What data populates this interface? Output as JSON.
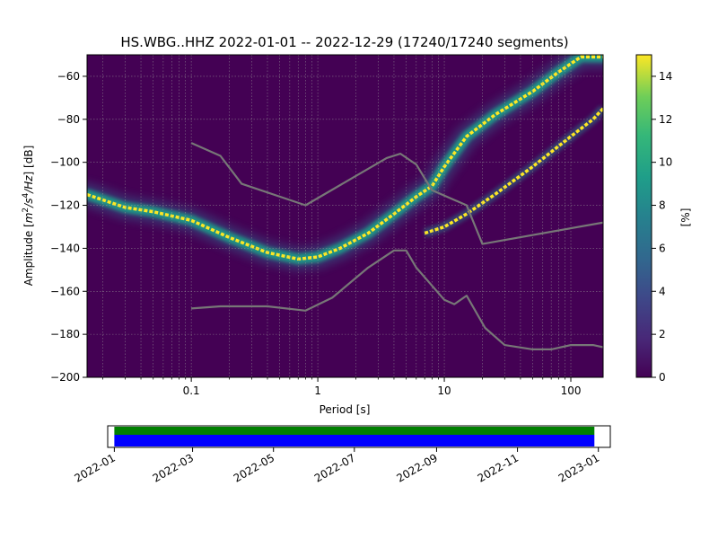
{
  "chart_data": [
    {
      "type": "heatmap",
      "title": "HS.WBG..HHZ   2022-01-01 -- 2022-12-29  (17240/17240 segments)",
      "xlabel": "Period [s]",
      "ylabel_parts": [
        "Amplitude [",
        "m",
        "2",
        "/s",
        "4",
        "/Hz",
        "] [dB]"
      ],
      "x_scale": "log",
      "xlim": [
        0.015,
        180
      ],
      "ylim": [
        -200,
        -50
      ],
      "x_ticks": [
        {
          "v": 0.1,
          "label": "0.1"
        },
        {
          "v": 1,
          "label": "1"
        },
        {
          "v": 10,
          "label": "10"
        },
        {
          "v": 100,
          "label": "100"
        }
      ],
      "y_ticks": [
        -60,
        -80,
        -100,
        -120,
        -140,
        -160,
        -180,
        -200
      ],
      "grid": true,
      "colorbar": {
        "label": "[%]",
        "range": [
          0,
          15
        ],
        "ticks": [
          0,
          2,
          4,
          6,
          8,
          10,
          12,
          14
        ],
        "colormap": "viridis"
      },
      "mode_curve": [
        [
          0.015,
          -115
        ],
        [
          0.03,
          -121
        ],
        [
          0.05,
          -123
        ],
        [
          0.1,
          -127
        ],
        [
          0.2,
          -135
        ],
        [
          0.4,
          -142
        ],
        [
          0.7,
          -145
        ],
        [
          1.0,
          -144
        ],
        [
          1.5,
          -140
        ],
        [
          2.5,
          -133
        ],
        [
          4,
          -124
        ],
        [
          6,
          -116
        ],
        [
          8,
          -111
        ],
        [
          10,
          -102
        ],
        [
          15,
          -88
        ],
        [
          25,
          -78
        ],
        [
          50,
          -67
        ],
        [
          80,
          -58
        ],
        [
          120,
          -51
        ],
        [
          180,
          -51
        ]
      ],
      "lower_curve": [
        [
          7,
          -133
        ],
        [
          10,
          -130
        ],
        [
          15,
          -124
        ],
        [
          25,
          -115
        ],
        [
          50,
          -102
        ],
        [
          100,
          -88
        ],
        [
          150,
          -80
        ],
        [
          180,
          -75
        ]
      ],
      "reference_curves": [
        {
          "points": [
            [
              0.1,
              -91
            ],
            [
              0.17,
              -97
            ],
            [
              0.25,
              -110
            ],
            [
              0.8,
              -120
            ],
            [
              3.5,
              -98
            ],
            [
              4.5,
              -96
            ],
            [
              6,
              -101
            ],
            [
              8,
              -113
            ],
            [
              15,
              -120
            ],
            [
              20,
              -138
            ],
            [
              180,
              -128
            ]
          ]
        },
        {
          "points": [
            [
              0.1,
              -168
            ],
            [
              0.17,
              -167
            ],
            [
              0.4,
              -167
            ],
            [
              0.8,
              -169
            ],
            [
              1.3,
              -163
            ],
            [
              2.5,
              -149
            ],
            [
              4,
              -141
            ],
            [
              5,
              -141
            ],
            [
              6,
              -149
            ],
            [
              10,
              -164
            ],
            [
              12,
              -166
            ],
            [
              15,
              -162
            ],
            [
              21,
              -177
            ],
            [
              30,
              -185
            ],
            [
              50,
              -187
            ],
            [
              70,
              -187
            ],
            [
              100,
              -185
            ],
            [
              150,
              -185
            ],
            [
              180,
              -186
            ]
          ]
        }
      ],
      "colors": {
        "background": "#440154",
        "reference": "#777777"
      }
    },
    {
      "type": "timeline",
      "x_ticks": [
        "2022-01",
        "2022-03",
        "2022-05",
        "2022-07",
        "2022-09",
        "2022-11",
        "2023-01"
      ],
      "data_span": [
        "2022-01-01",
        "2022-12-29"
      ],
      "colors": {
        "top": "#008000",
        "bottom": "#0000ff"
      }
    }
  ]
}
